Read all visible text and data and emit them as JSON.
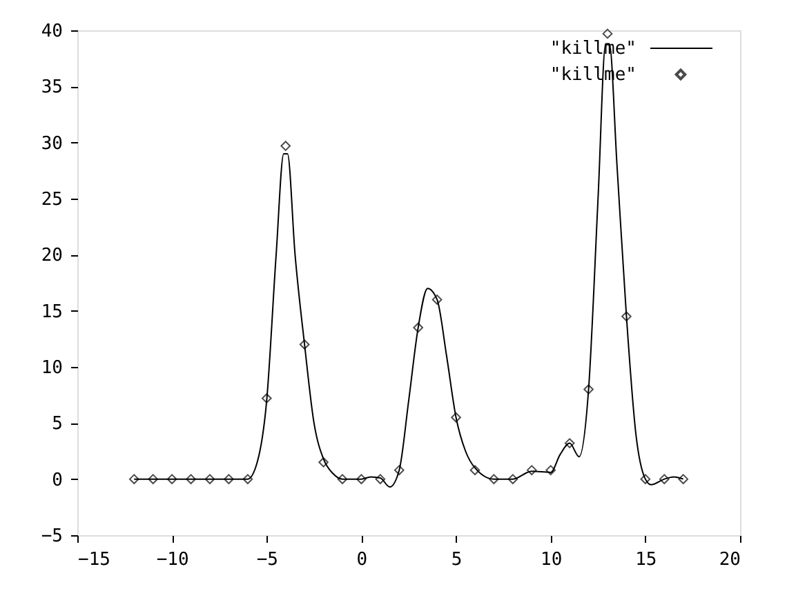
{
  "chart_data": {
    "type": "line",
    "xlim": [
      -15,
      20
    ],
    "xticks": [
      -15,
      -10,
      -5,
      0,
      5,
      10,
      15,
      20
    ],
    "ylim": [
      -5,
      40
    ],
    "yticks": [
      -5,
      0,
      5,
      10,
      15,
      20,
      25,
      30,
      35,
      40
    ],
    "grid": false,
    "legend": "top right",
    "series": [
      {
        "name": "\"killme\"",
        "color": "#000000",
        "marker": "none",
        "line_style": "solid",
        "x": [
          -12,
          -6,
          -5.5,
          -5,
          -4.5,
          -4.1,
          -3.9,
          -3.5,
          -3,
          -2.5,
          -2,
          -1.5,
          -1,
          0,
          0.5,
          1,
          1.5,
          2,
          2.5,
          3,
          3.5,
          4,
          4.5,
          5,
          5.5,
          6,
          7,
          8,
          9,
          10,
          10.5,
          11,
          11.5,
          12,
          12.5,
          12.9,
          13.1,
          13.5,
          14,
          14.5,
          15,
          15.3,
          16,
          16.5,
          17
        ],
        "values": [
          0,
          0,
          1.5,
          7,
          20,
          29,
          29,
          20,
          12,
          5,
          1.8,
          0.5,
          0,
          0,
          0.2,
          0.1,
          -0.7,
          0.8,
          7,
          13.5,
          17,
          16,
          11,
          5.5,
          2.5,
          1,
          0,
          0,
          0.7,
          0.6,
          2.2,
          3.2,
          2,
          8,
          25,
          38.8,
          38.8,
          28,
          14.5,
          4,
          0,
          -0.5,
          0,
          0.2,
          0
        ]
      },
      {
        "name": "\"killme\"",
        "type": "scatter",
        "color": "#000000",
        "marker": "diamond",
        "x": [
          -12,
          -11,
          -10,
          -9,
          -8,
          -7,
          -6,
          -5,
          -4,
          -3,
          -2,
          -1,
          0,
          1,
          2,
          3,
          4,
          5,
          6,
          7,
          8,
          9,
          10,
          11,
          12,
          13,
          14,
          15,
          16,
          17
        ],
        "values": [
          0,
          0,
          0,
          0,
          0,
          0,
          0,
          7.2,
          29.7,
          12,
          1.5,
          0,
          0,
          0,
          0.8,
          13.5,
          16,
          5.5,
          0.8,
          0,
          0,
          0.8,
          0.8,
          3.2,
          8,
          39.7,
          14.5,
          0,
          0,
          0
        ]
      }
    ]
  }
}
